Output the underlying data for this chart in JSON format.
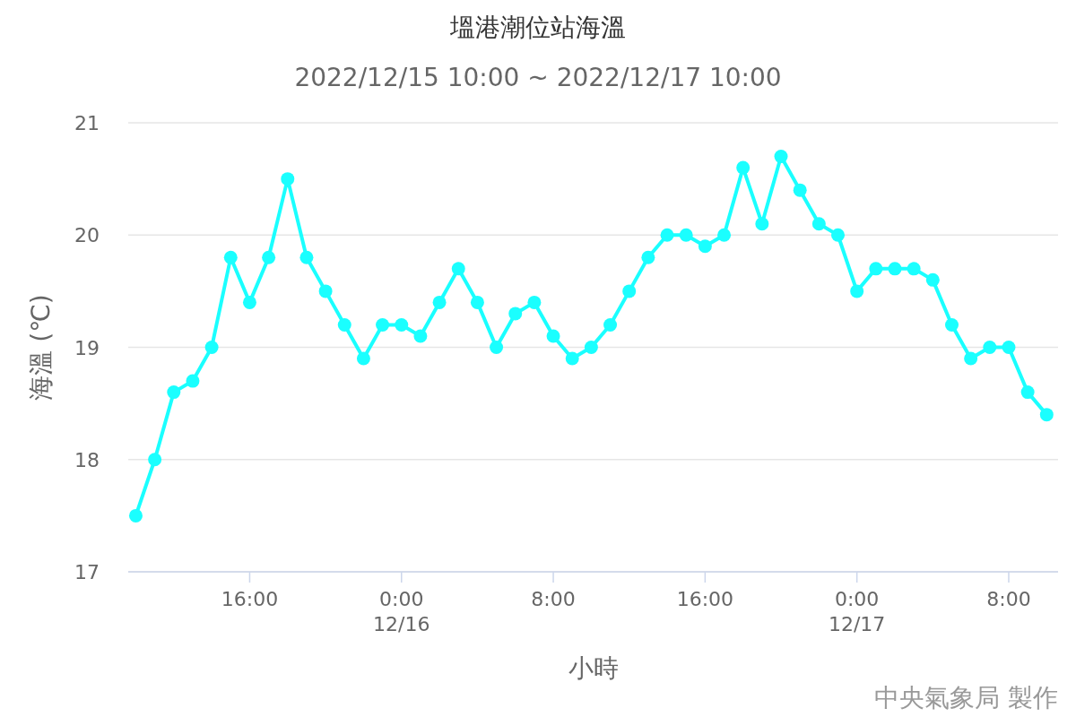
{
  "chart_data": {
    "type": "line",
    "title": "塭港潮位站海溫",
    "subtitle": "2022/12/15 10:00 ~ 2022/12/17 10:00",
    "xlabel": "小時",
    "ylabel": "海溫 (℃)",
    "annotations": [
      "中央氣象局 製作"
    ],
    "x": [
      "2022-12-15T10:00",
      "2022-12-15T11:00",
      "2022-12-15T12:00",
      "2022-12-15T13:00",
      "2022-12-15T14:00",
      "2022-12-15T15:00",
      "2022-12-15T16:00",
      "2022-12-15T17:00",
      "2022-12-15T18:00",
      "2022-12-15T19:00",
      "2022-12-15T20:00",
      "2022-12-15T21:00",
      "2022-12-15T22:00",
      "2022-12-15T23:00",
      "2022-12-16T00:00",
      "2022-12-16T01:00",
      "2022-12-16T02:00",
      "2022-12-16T03:00",
      "2022-12-16T04:00",
      "2022-12-16T05:00",
      "2022-12-16T06:00",
      "2022-12-16T07:00",
      "2022-12-16T08:00",
      "2022-12-16T09:00",
      "2022-12-16T10:00",
      "2022-12-16T11:00",
      "2022-12-16T12:00",
      "2022-12-16T13:00",
      "2022-12-16T14:00",
      "2022-12-16T15:00",
      "2022-12-16T16:00",
      "2022-12-16T17:00",
      "2022-12-16T18:00",
      "2022-12-16T19:00",
      "2022-12-16T20:00",
      "2022-12-16T21:00",
      "2022-12-16T22:00",
      "2022-12-16T23:00",
      "2022-12-17T00:00",
      "2022-12-17T01:00",
      "2022-12-17T02:00",
      "2022-12-17T03:00",
      "2022-12-17T04:00",
      "2022-12-17T05:00",
      "2022-12-17T06:00",
      "2022-12-17T07:00",
      "2022-12-17T08:00",
      "2022-12-17T09:00",
      "2022-12-17T10:00"
    ],
    "series": [
      {
        "color": "#1affff",
        "values": [
          17.5,
          18.0,
          18.6,
          18.7,
          19.0,
          19.8,
          19.4,
          19.8,
          20.5,
          19.8,
          19.5,
          19.2,
          18.9,
          19.2,
          19.2,
          19.1,
          19.4,
          19.7,
          19.4,
          19.0,
          19.3,
          19.4,
          19.1,
          18.9,
          19.0,
          19.2,
          19.5,
          19.8,
          20.0,
          20.0,
          19.9,
          20.0,
          20.6,
          20.1,
          20.7,
          20.4,
          20.1,
          20.0,
          19.5,
          19.7,
          19.7,
          19.7,
          19.6,
          19.2,
          18.9,
          19.0,
          19.0,
          18.6,
          18.4
        ]
      }
    ],
    "xlim": [
      "2022-12-15T09:36",
      "2022-12-17T10:36"
    ],
    "xticks": [
      {
        "value": "2022-12-15T16:00",
        "label": "16:00"
      },
      {
        "value": "2022-12-16T00:00",
        "label": "0:00\n12/16"
      },
      {
        "value": "2022-12-16T08:00",
        "label": "8:00"
      },
      {
        "value": "2022-12-16T16:00",
        "label": "16:00"
      },
      {
        "value": "2022-12-17T00:00",
        "label": "0:00\n12/17"
      },
      {
        "value": "2022-12-17T08:00",
        "label": "8:00"
      }
    ],
    "ylim": [
      17,
      21
    ],
    "yticks": [
      17,
      18,
      19,
      20,
      21
    ],
    "grid": "y",
    "marker": "circle",
    "line_style": "solid"
  }
}
